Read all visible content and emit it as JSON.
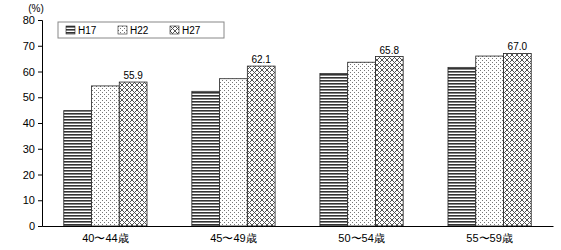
{
  "chart_data": {
    "type": "bar",
    "ylabel": "(%)",
    "categories": [
      "40〜44歳",
      "45〜49歳",
      "50〜54歳",
      "55〜59歳"
    ],
    "series": [
      {
        "name": "H17",
        "color": "#333333",
        "values": [
          44.8,
          52.3,
          59.2,
          61.6
        ]
      },
      {
        "name": "H22",
        "color": "#777777",
        "values": [
          54.4,
          57.2,
          63.6,
          66.0
        ]
      },
      {
        "name": "H27",
        "color": "#555555",
        "values": [
          55.9,
          62.1,
          65.8,
          67.0
        ],
        "data_labels": true,
        "value_labels": [
          "55.9",
          "62.1",
          "65.8",
          "67.0"
        ]
      }
    ],
    "ylim": [
      0,
      80
    ],
    "yticks": [
      0,
      10,
      20,
      30,
      40,
      50,
      60,
      70,
      80
    ],
    "grid": false,
    "legend": "upper left"
  }
}
